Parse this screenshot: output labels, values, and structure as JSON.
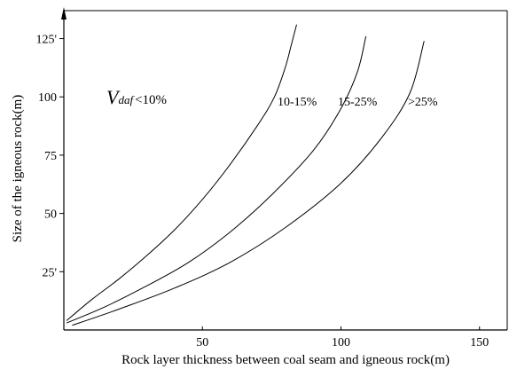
{
  "chart_data": {
    "type": "line",
    "xlabel": "Rock layer thickness between coal seam and igneous rock(m)",
    "ylabel": "Size of the igneous rock(m)",
    "xlim": [
      0,
      160
    ],
    "ylim": [
      0,
      137
    ],
    "x_ticks": [
      50,
      100,
      150
    ],
    "y_ticks": [
      25,
      50,
      75,
      100,
      125
    ],
    "x_tick_labels": [
      "50",
      "100",
      "150"
    ],
    "y_tick_labels": [
      "25'",
      "50",
      "75",
      "100",
      "125'"
    ],
    "grid": false,
    "series": [
      {
        "x": [
          1,
          10,
          20,
          30,
          40,
          50,
          60,
          70,
          76,
          80,
          82,
          84
        ],
        "y": [
          4,
          13,
          22,
          32,
          43,
          56,
          71,
          88,
          100,
          113,
          122,
          131
        ]
      },
      {
        "x": [
          1,
          15,
          30,
          45,
          60,
          75,
          90,
          100,
          106,
          109
        ],
        "y": [
          3,
          10,
          19,
          29,
          42,
          58,
          77,
          95,
          111,
          126
        ]
      },
      {
        "x": [
          3,
          20,
          40,
          60,
          80,
          100,
          115,
          125,
          130
        ],
        "y": [
          2,
          9,
          18,
          29,
          44,
          63,
          83,
          102,
          124
        ]
      }
    ],
    "region_labels": [
      {
        "text": "10-15%"
      },
      {
        "text": "15-25%"
      },
      {
        "text": ">25%"
      }
    ],
    "vdaf_label": {
      "symbol": "V",
      "subscript": "daf",
      "rest": "<10%"
    }
  }
}
